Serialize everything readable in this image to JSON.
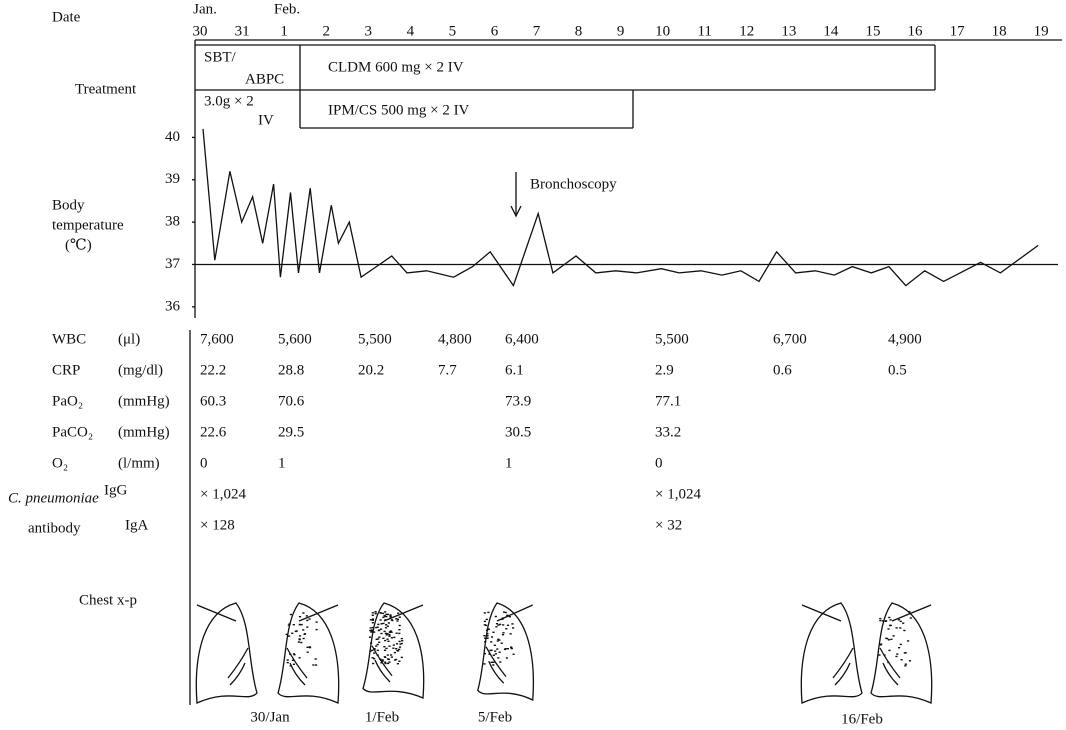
{
  "date_header": {
    "label": "Date",
    "months": [
      "Jan.",
      "Feb."
    ],
    "days": [
      "30",
      "31",
      "1",
      "2",
      "3",
      "4",
      "5",
      "6",
      "7",
      "8",
      "9",
      "10",
      "11",
      "12",
      "13",
      "14",
      "15",
      "16",
      "17",
      "18",
      "19"
    ]
  },
  "treatment": {
    "label": "Treatment",
    "regimens": [
      {
        "name": "SBT/",
        "name2": "ABPC",
        "dose": "3.0g × 2",
        "route": "IV"
      },
      {
        "name": "CLDM 600 mg × 2   IV"
      },
      {
        "name": "IPM/CS 500 mg × 2   IV"
      }
    ]
  },
  "chart_data": {
    "type": "line",
    "ylabel": [
      "Body",
      "temperature",
      "(℃)"
    ],
    "color": "#000000",
    "x": [
      0.07,
      0.35,
      0.71,
      0.99,
      1.25,
      1.49,
      1.75,
      1.91,
      2.15,
      2.34,
      2.62,
      2.84,
      3.12,
      3.29,
      3.55,
      3.83,
      4.56,
      4.92,
      5.39,
      6.03,
      6.48,
      6.9,
      7.45,
      8.04,
      8.39,
      8.94,
      9.41,
      9.88,
      10.38,
      10.97,
      11.39,
      11.91,
      12.41,
      12.86,
      13.29,
      13.71,
      14.16,
      14.63,
      15.08,
      15.51,
      15.96,
      16.38,
      16.78,
      17.23,
      17.68,
      18.56,
      19.03,
      19.93
    ],
    "values": [
      40.2,
      37.1,
      39.2,
      38.0,
      38.6,
      37.5,
      38.9,
      36.7,
      38.7,
      36.8,
      38.8,
      36.8,
      38.4,
      37.5,
      38.0,
      36.7,
      37.2,
      36.8,
      36.85,
      36.7,
      36.95,
      37.3,
      36.5,
      38.2,
      36.8,
      37.2,
      36.8,
      36.85,
      36.8,
      36.9,
      36.8,
      36.85,
      36.75,
      36.85,
      36.6,
      37.3,
      36.8,
      36.85,
      36.75,
      36.95,
      36.8,
      36.95,
      36.5,
      36.85,
      36.6,
      37.05,
      36.8,
      37.45
    ],
    "xlim": [
      -0.12,
      20.4
    ],
    "ylim": [
      35.5,
      40.6
    ],
    "yticks": [
      36,
      37,
      38,
      39,
      40
    ],
    "reference_line": 37,
    "annotation": "Bronchoscopy"
  },
  "labs": {
    "rows": [
      {
        "name": "WBC",
        "unit": "(μl)",
        "values": [
          "7,600",
          "5,600",
          "5,500",
          "4,800",
          "6,400",
          "5,500",
          "6,700",
          "4,900"
        ]
      },
      {
        "name": "CRP",
        "unit": "(mg/dl)",
        "values": [
          "22.2",
          "28.8",
          "20.2",
          "7.7",
          "6.1",
          "2.9",
          "0.6",
          "0.5"
        ]
      },
      {
        "name": "PaO₂",
        "unit": "(mmHg)",
        "values": [
          "60.3",
          "70.6",
          null,
          null,
          "73.9",
          "77.1",
          null,
          null
        ]
      },
      {
        "name": "PaCO₂",
        "unit": "(mmHg)",
        "values": [
          "22.6",
          "29.5",
          null,
          null,
          "30.5",
          "33.2",
          null,
          null
        ]
      },
      {
        "name": "O₂",
        "unit": "(l/mm)",
        "values": [
          "0",
          "1",
          null,
          null,
          "1",
          "0",
          null,
          null
        ]
      },
      {
        "name": "C. pneumoniae",
        "unit": "IgG",
        "values": [
          "× 1,024",
          null,
          null,
          null,
          null,
          "× 1,024",
          null,
          null
        ]
      },
      {
        "name": "antibody",
        "unit": "IgA",
        "values": [
          "× 128",
          null,
          null,
          null,
          null,
          "× 32",
          null,
          null
        ]
      }
    ]
  },
  "chest_xp": {
    "label": "Chest x-p",
    "dates": [
      "30/Jan",
      "1/Feb",
      "5/Feb",
      "16/Feb"
    ]
  }
}
